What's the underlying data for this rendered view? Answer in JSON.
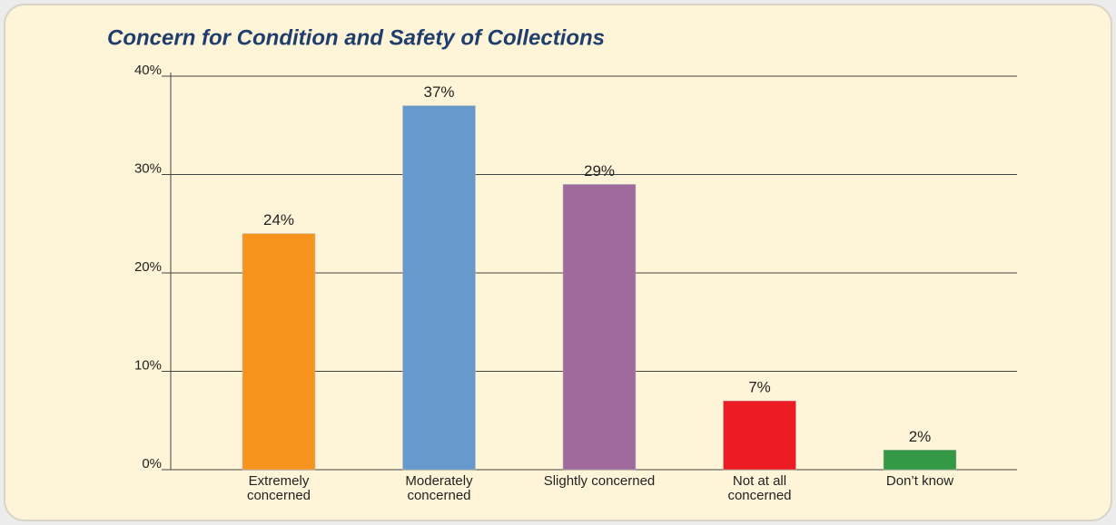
{
  "chart_data": {
    "type": "bar",
    "title": "Concern for Condition and Safety of Collections",
    "categories": [
      "Extremely\nconcerned",
      "Moderately\nconcerned",
      "Slightly concerned",
      "Not at all\nconcerned",
      "Don’t know"
    ],
    "values": [
      24,
      37,
      29,
      7,
      2
    ],
    "value_labels": [
      "24%",
      "37%",
      "29%",
      "7%",
      "2%"
    ],
    "colors": [
      "#f7941d",
      "#6699cc",
      "#9e6b9c",
      "#ed1c24",
      "#339944"
    ],
    "ylim": [
      0,
      40
    ],
    "yticks": [
      {
        "value": 0,
        "label": "0%"
      },
      {
        "value": 10,
        "label": "10%"
      },
      {
        "value": 20,
        "label": "20%"
      },
      {
        "value": 30,
        "label": "30%"
      },
      {
        "value": 40,
        "label": "40%"
      }
    ],
    "grid": true
  }
}
